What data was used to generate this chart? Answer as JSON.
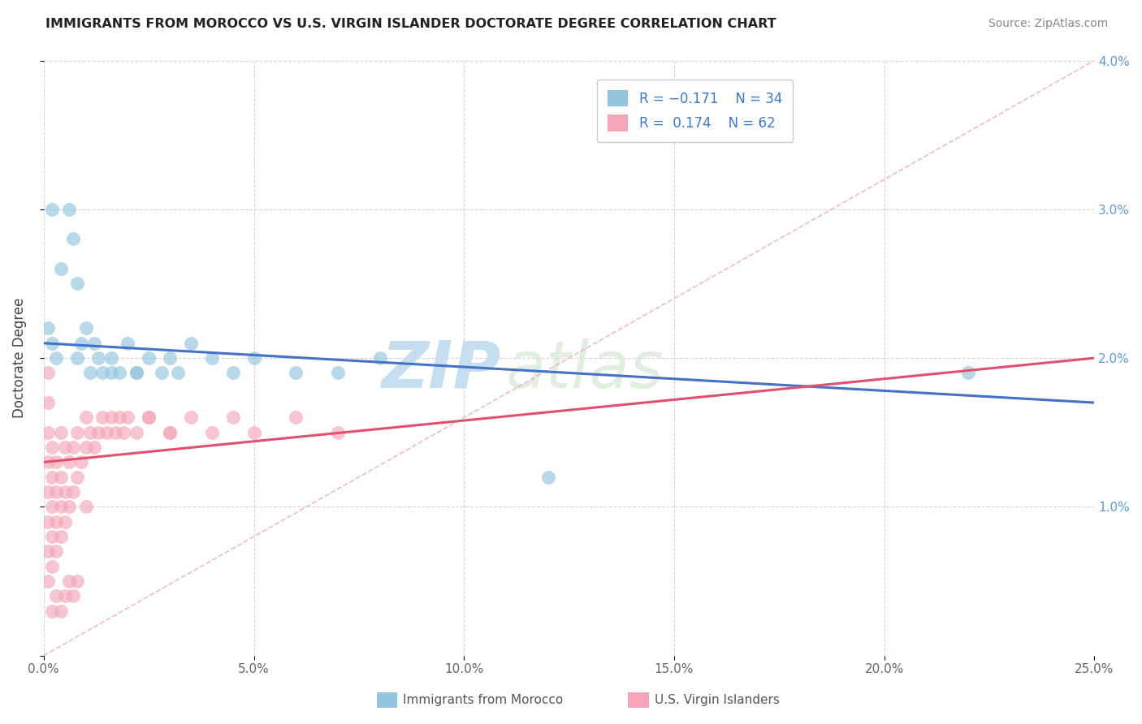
{
  "title": "IMMIGRANTS FROM MOROCCO VS U.S. VIRGIN ISLANDER DOCTORATE DEGREE CORRELATION CHART",
  "source": "Source: ZipAtlas.com",
  "ylabel": "Doctorate Degree",
  "xlabel_blue": "Immigrants from Morocco",
  "xlabel_pink": "U.S. Virgin Islanders",
  "xlim": [
    0.0,
    0.25
  ],
  "ylim": [
    0.0,
    0.04
  ],
  "xticks": [
    0.0,
    0.05,
    0.1,
    0.15,
    0.2,
    0.25
  ],
  "yticks": [
    0.0,
    0.01,
    0.02,
    0.03,
    0.04
  ],
  "xtick_labels": [
    "0.0%",
    "5.0%",
    "10.0%",
    "15.0%",
    "20.0%",
    "25.0%"
  ],
  "ytick_labels_right": [
    "",
    "1.0%",
    "2.0%",
    "3.0%",
    "4.0%"
  ],
  "color_blue": "#92c5de",
  "color_pink": "#f4a6b8",
  "line_blue": "#4472c4",
  "line_pink": "#e05070",
  "line_blue_start_y": 0.021,
  "line_blue_end_y": 0.017,
  "line_pink_start_y": 0.013,
  "line_pink_end_y": 0.02,
  "watermark_zip": "ZIP",
  "watermark_atlas": "atlas",
  "blue_x": [
    0.001,
    0.002,
    0.003,
    0.006,
    0.007,
    0.008,
    0.01,
    0.012,
    0.014,
    0.016,
    0.018,
    0.02,
    0.022,
    0.025,
    0.028,
    0.032,
    0.035,
    0.04,
    0.045,
    0.05,
    0.06,
    0.07,
    0.08,
    0.12,
    0.002,
    0.004,
    0.008,
    0.009,
    0.011,
    0.013,
    0.016,
    0.022,
    0.03,
    0.22
  ],
  "blue_y": [
    0.022,
    0.021,
    0.02,
    0.03,
    0.028,
    0.025,
    0.022,
    0.021,
    0.019,
    0.02,
    0.019,
    0.021,
    0.019,
    0.02,
    0.019,
    0.019,
    0.021,
    0.02,
    0.019,
    0.02,
    0.019,
    0.019,
    0.02,
    0.012,
    0.03,
    0.026,
    0.02,
    0.021,
    0.019,
    0.02,
    0.019,
    0.019,
    0.02,
    0.019
  ],
  "pink_x": [
    0.001,
    0.001,
    0.001,
    0.001,
    0.001,
    0.001,
    0.001,
    0.001,
    0.002,
    0.002,
    0.002,
    0.002,
    0.002,
    0.003,
    0.003,
    0.003,
    0.003,
    0.004,
    0.004,
    0.004,
    0.004,
    0.005,
    0.005,
    0.005,
    0.006,
    0.006,
    0.007,
    0.007,
    0.008,
    0.008,
    0.009,
    0.01,
    0.01,
    0.011,
    0.012,
    0.013,
    0.014,
    0.015,
    0.016,
    0.017,
    0.018,
    0.019,
    0.02,
    0.022,
    0.025,
    0.03,
    0.035,
    0.04,
    0.045,
    0.05,
    0.06,
    0.07,
    0.002,
    0.003,
    0.004,
    0.005,
    0.006,
    0.007,
    0.008,
    0.025,
    0.03,
    0.01
  ],
  "pink_y": [
    0.005,
    0.007,
    0.009,
    0.011,
    0.013,
    0.015,
    0.017,
    0.019,
    0.006,
    0.008,
    0.01,
    0.012,
    0.014,
    0.007,
    0.009,
    0.011,
    0.013,
    0.008,
    0.01,
    0.012,
    0.015,
    0.009,
    0.011,
    0.014,
    0.01,
    0.013,
    0.011,
    0.014,
    0.012,
    0.015,
    0.013,
    0.014,
    0.016,
    0.015,
    0.014,
    0.015,
    0.016,
    0.015,
    0.016,
    0.015,
    0.016,
    0.015,
    0.016,
    0.015,
    0.016,
    0.015,
    0.016,
    0.015,
    0.016,
    0.015,
    0.016,
    0.015,
    0.003,
    0.004,
    0.003,
    0.004,
    0.005,
    0.004,
    0.005,
    0.016,
    0.015,
    0.01
  ]
}
